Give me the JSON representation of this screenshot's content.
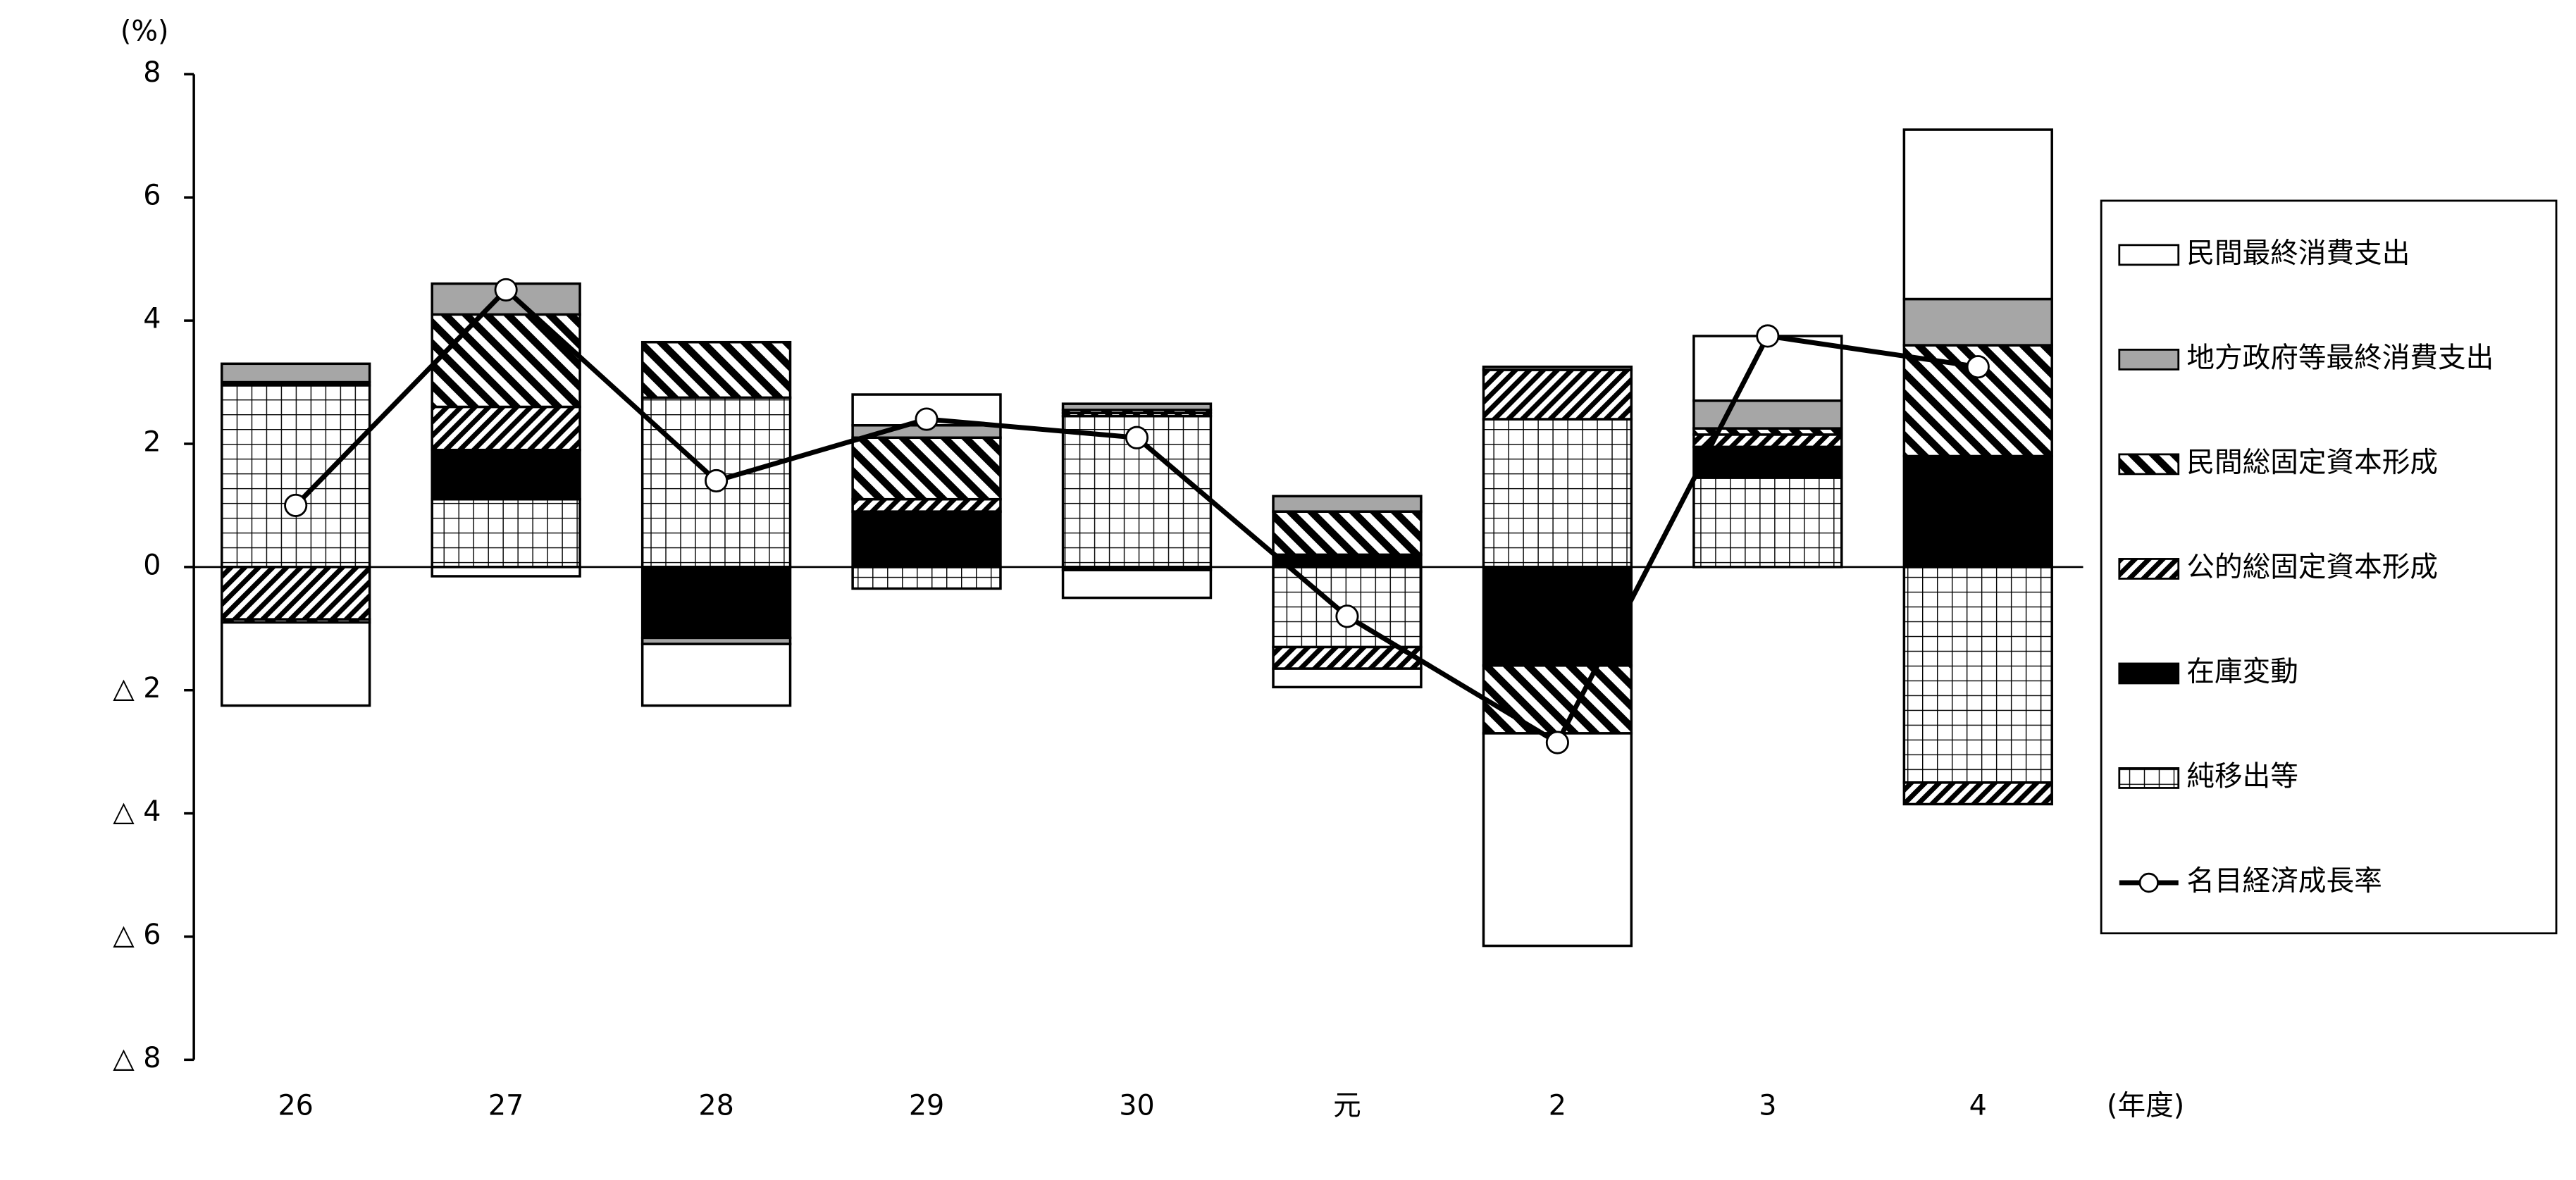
{
  "chart_data": {
    "type": "bar",
    "stacked": true,
    "y_unit_label": "(%)",
    "x_unit_label": "(年度)",
    "categories": [
      "26",
      "27",
      "28",
      "29",
      "30",
      "元",
      "2",
      "3",
      "4"
    ],
    "ylim": [
      -8,
      8
    ],
    "yticks": [
      8,
      6,
      4,
      2,
      0,
      {
        "value": -2,
        "label": "△ 2"
      },
      {
        "value": -4,
        "label": "△ 4"
      },
      {
        "value": -6,
        "label": "△ 6"
      },
      {
        "value": -8,
        "label": "△ 8"
      }
    ],
    "legend": "right",
    "series": [
      {
        "name": "民間最終消費支出",
        "color": "#ffffff",
        "pattern": "none",
        "values": [
          -1.35,
          -0.15,
          -1.0,
          0.5,
          -0.45,
          -0.3,
          -3.45,
          1.05,
          2.75
        ]
      },
      {
        "name": "地方政府等最終消費支出",
        "color": "#a6a6a6",
        "pattern": "none",
        "values": [
          0.3,
          0.5,
          -0.1,
          0.2,
          0.1,
          0.25,
          0.05,
          0.45,
          0.75
        ]
      },
      {
        "name": "民間総固定資本形成",
        "color": "#000000",
        "pattern": "backslash",
        "values": [
          -0.05,
          1.5,
          0.9,
          1.0,
          0.05,
          0.7,
          -1.1,
          0.1,
          1.8
        ]
      },
      {
        "name": "公的総固定資本形成",
        "color": "#000000",
        "pattern": "slash",
        "values": [
          -0.85,
          0.7,
          0,
          0.2,
          0.05,
          -0.35,
          0.8,
          0.2,
          -0.35
        ]
      },
      {
        "name": "在庫変動",
        "color": "#000000",
        "pattern": "none",
        "values": [
          0.05,
          0.8,
          -1.15,
          0.9,
          -0.05,
          0.2,
          -1.6,
          0.5,
          1.8
        ]
      },
      {
        "name": "純移出等",
        "color": "#000000",
        "pattern": "grid",
        "values": [
          2.95,
          1.1,
          2.75,
          -0.35,
          2.45,
          -1.3,
          2.4,
          1.45,
          -3.5
        ]
      },
      {
        "name": "名目経済成長率",
        "type": "line",
        "color": "#000000",
        "values": [
          1.0,
          4.5,
          1.4,
          2.4,
          2.1,
          -0.8,
          -2.85,
          3.75,
          3.25
        ]
      }
    ]
  }
}
